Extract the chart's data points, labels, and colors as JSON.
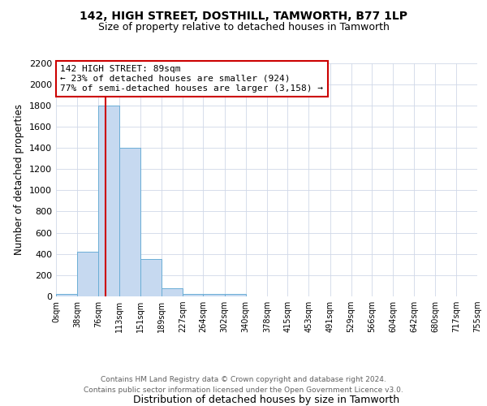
{
  "title1": "142, HIGH STREET, DOSTHILL, TAMWORTH, B77 1LP",
  "title2": "Size of property relative to detached houses in Tamworth",
  "xlabel": "Distribution of detached houses by size in Tamworth",
  "ylabel": "Number of detached properties",
  "footer1": "Contains HM Land Registry data © Crown copyright and database right 2024.",
  "footer2": "Contains public sector information licensed under the Open Government Licence v3.0.",
  "bin_edges": [
    0,
    38,
    76,
    113,
    151,
    189,
    227,
    264,
    302,
    340,
    378,
    415,
    453,
    491,
    529,
    566,
    604,
    642,
    680,
    717,
    755
  ],
  "bar_heights": [
    20,
    420,
    1800,
    1400,
    350,
    80,
    25,
    20,
    20,
    0,
    0,
    0,
    0,
    0,
    0,
    0,
    0,
    0,
    0,
    0
  ],
  "bar_color": "#c6d9f0",
  "bar_edge_color": "#6baed6",
  "property_line_x": 89,
  "property_line_color": "#cc0000",
  "annotation_line1": "142 HIGH STREET: 89sqm",
  "annotation_line2": "← 23% of detached houses are smaller (924)",
  "annotation_line3": "77% of semi-detached houses are larger (3,158) →",
  "annotation_box_color": "#cc0000",
  "ylim": [
    0,
    2200
  ],
  "yticks": [
    0,
    200,
    400,
    600,
    800,
    1000,
    1200,
    1400,
    1600,
    1800,
    2000,
    2200
  ],
  "tick_labels": [
    "0sqm",
    "38sqm",
    "76sqm",
    "113sqm",
    "151sqm",
    "189sqm",
    "227sqm",
    "264sqm",
    "302sqm",
    "340sqm",
    "378sqm",
    "415sqm",
    "453sqm",
    "491sqm",
    "529sqm",
    "566sqm",
    "604sqm",
    "642sqm",
    "680sqm",
    "717sqm",
    "755sqm"
  ],
  "background_color": "#ffffff",
  "grid_color": "#d0d8e8"
}
